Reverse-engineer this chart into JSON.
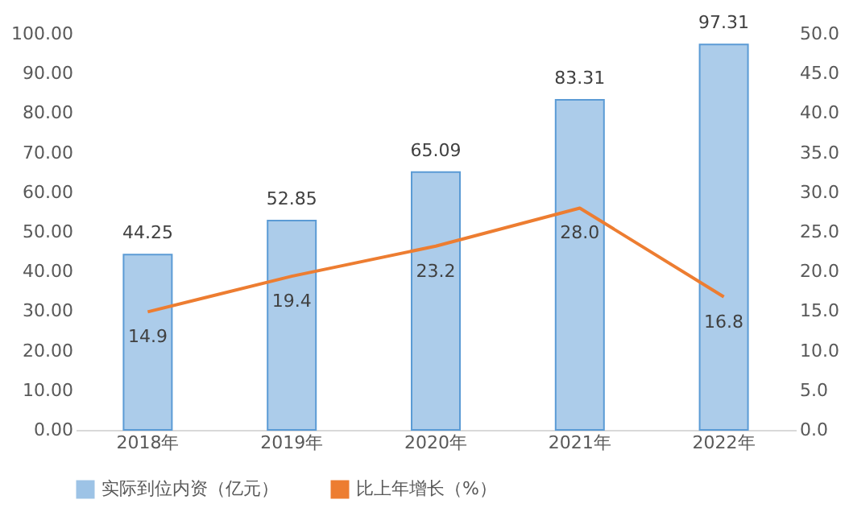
{
  "chart_data": {
    "type": "bar",
    "categories": [
      "2018年",
      "2019年",
      "2020年",
      "2021年",
      "2022年"
    ],
    "series": [
      {
        "name": "实际到位内资（亿元）",
        "color": "#9dc3e6",
        "values": [
          44.25,
          52.85,
          65.09,
          83.31,
          97.31
        ]
      },
      {
        "name": "比上年增长（%）",
        "type": "line",
        "axis": "y2",
        "color": "#ed7d31",
        "values": [
          14.9,
          19.4,
          23.2,
          28.0,
          16.8
        ],
        "value_labels": [
          "14.9",
          "19.4",
          "23.2",
          "28.0",
          "16.8"
        ]
      }
    ],
    "ylim": [
      0,
      100
    ],
    "yticks": [
      {
        "value": 0,
        "label": "0.00"
      },
      {
        "value": 10,
        "label": "10.00"
      },
      {
        "value": 20,
        "label": "20.00"
      },
      {
        "value": 30,
        "label": "30.00"
      },
      {
        "value": 40,
        "label": "40.00"
      },
      {
        "value": 50,
        "label": "50.00"
      },
      {
        "value": 60,
        "label": "60.00"
      },
      {
        "value": 70,
        "label": "70.00"
      },
      {
        "value": 80,
        "label": "80.00"
      },
      {
        "value": 90,
        "label": "90.00"
      },
      {
        "value": 100,
        "label": "100.00"
      }
    ],
    "y2lim": [
      0,
      50
    ],
    "y2ticks": [
      {
        "value": 0,
        "label": "0.0"
      },
      {
        "value": 5,
        "label": "5.0"
      },
      {
        "value": 10,
        "label": "10.0"
      },
      {
        "value": 15,
        "label": "15.0"
      },
      {
        "value": 20,
        "label": "20.0"
      },
      {
        "value": 25,
        "label": "25.0"
      },
      {
        "value": 30,
        "label": "30.0"
      },
      {
        "value": 35,
        "label": "35.0"
      },
      {
        "value": 40,
        "label": "40.0"
      },
      {
        "value": 45,
        "label": "45.0"
      },
      {
        "value": 50,
        "label": "50.0"
      }
    ],
    "data_labels": true,
    "legend": "bottom",
    "marker": "none",
    "line_style": "solid"
  }
}
